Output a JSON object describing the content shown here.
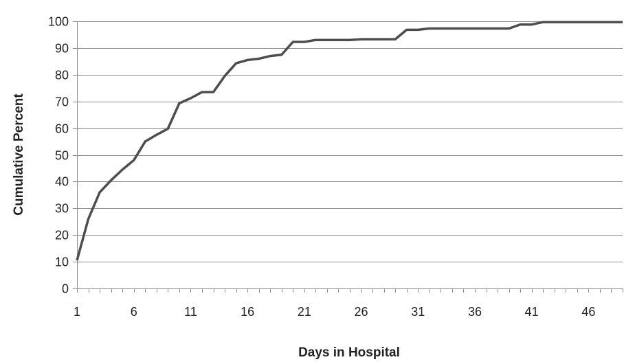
{
  "chart_data": {
    "type": "line",
    "title": "",
    "xlabel": "Days in Hospital",
    "ylabel": "Cumulative Percent",
    "xlim": [
      1,
      49
    ],
    "ylim": [
      0,
      100
    ],
    "x_ticks": [
      1,
      6,
      11,
      16,
      21,
      26,
      31,
      36,
      41,
      46
    ],
    "y_ticks": [
      0,
      10,
      20,
      30,
      40,
      50,
      60,
      70,
      80,
      90,
      100
    ],
    "grid": {
      "horizontal": true,
      "vertical": false
    },
    "legend": "none",
    "colors": {
      "line": "#4d4d4d",
      "grid": "#8c8c8c",
      "axis": "#8c8c8c"
    },
    "series": [
      {
        "x": [
          1,
          2,
          3,
          4,
          5,
          6,
          7,
          8,
          9,
          10,
          11,
          12,
          13,
          14,
          15,
          16,
          17,
          18,
          19,
          20,
          21,
          22,
          23,
          24,
          25,
          26,
          27,
          28,
          29,
          30,
          31,
          32,
          33,
          34,
          35,
          36,
          37,
          38,
          39,
          40,
          41,
          42,
          43,
          44,
          45,
          46,
          47,
          48,
          49
        ],
        "values": [
          10.5,
          26,
          36,
          40.5,
          44.5,
          48,
          55,
          57.5,
          59.8,
          69.3,
          71.2,
          73.5,
          73.5,
          79.5,
          84.3,
          85.5,
          86,
          87,
          87.5,
          92.3,
          92.3,
          93,
          93,
          93,
          93,
          93.3,
          93.3,
          93.3,
          93.3,
          96.8,
          96.8,
          97.3,
          97.3,
          97.3,
          97.3,
          97.3,
          97.3,
          97.3,
          97.3,
          98.8,
          98.8,
          99.7,
          99.7,
          99.7,
          99.7,
          99.7,
          99.7,
          99.7,
          99.7
        ]
      }
    ]
  }
}
